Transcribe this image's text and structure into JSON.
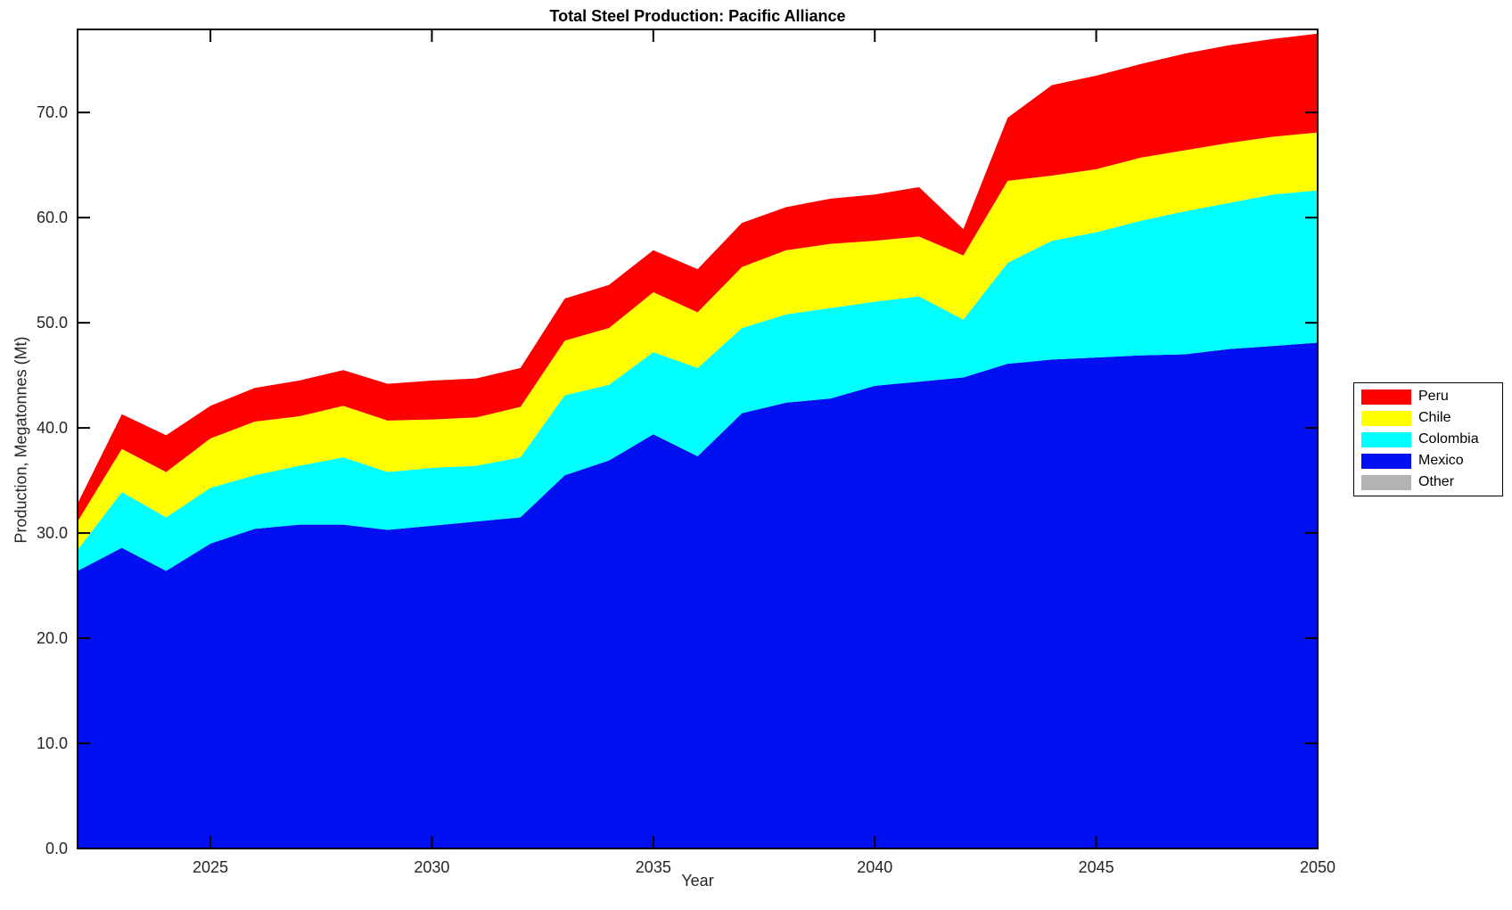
{
  "chart_data": {
    "type": "area",
    "stacked": true,
    "title": "Total Steel Production: Pacific Alliance",
    "xlabel": "Year",
    "ylabel": "Production, Megatonnes (Mt)",
    "xlim": [
      2022,
      2050
    ],
    "ylim": [
      0,
      77.9
    ],
    "grid": false,
    "x": [
      2022,
      2023,
      2024,
      2025,
      2026,
      2027,
      2028,
      2029,
      2030,
      2031,
      2032,
      2033,
      2034,
      2035,
      2036,
      2037,
      2038,
      2039,
      2040,
      2041,
      2042,
      2043,
      2044,
      2045,
      2046,
      2047,
      2048,
      2049,
      2050
    ],
    "x_ticks": [
      2025,
      2030,
      2035,
      2040,
      2045,
      2050
    ],
    "x_tick_labels": [
      "2025",
      "2030",
      "2035",
      "2040",
      "2045",
      "2050"
    ],
    "y_ticks": [
      0,
      10,
      20,
      30,
      40,
      50,
      60,
      70
    ],
    "y_tick_labels": [
      "0.0",
      "10.0",
      "20.0",
      "30.0",
      "40.0",
      "50.0",
      "60.0",
      "70.0"
    ],
    "series": [
      {
        "name": "Mexico",
        "color": "#0010f0",
        "values": [
          26.4,
          28.6,
          26.4,
          29.0,
          30.4,
          30.8,
          30.8,
          30.3,
          30.7,
          31.1,
          31.5,
          35.5,
          36.9,
          39.4,
          37.3,
          41.4,
          42.4,
          42.8,
          44.0,
          44.4,
          44.8,
          46.1,
          46.5,
          46.7,
          46.9,
          47.0,
          47.5,
          47.8,
          48.1
        ]
      },
      {
        "name": "Colombia",
        "color": "#00ffff",
        "values": [
          2.0,
          5.3,
          5.1,
          5.3,
          5.1,
          5.6,
          6.4,
          5.5,
          5.5,
          5.3,
          5.7,
          7.6,
          7.2,
          7.8,
          8.4,
          8.1,
          8.4,
          8.6,
          8.0,
          8.1,
          5.5,
          9.6,
          11.3,
          11.9,
          12.8,
          13.6,
          13.9,
          14.4,
          14.5
        ]
      },
      {
        "name": "Chile",
        "color": "#ffff00",
        "values": [
          2.7,
          4.1,
          4.3,
          4.7,
          5.1,
          4.7,
          4.9,
          4.9,
          4.6,
          4.6,
          4.8,
          5.2,
          5.4,
          5.7,
          5.3,
          5.8,
          6.1,
          6.1,
          5.8,
          5.7,
          6.1,
          7.8,
          6.2,
          6.0,
          6.0,
          5.8,
          5.7,
          5.5,
          5.5
        ]
      },
      {
        "name": "Peru",
        "color": "#ff0000",
        "values": [
          1.7,
          3.3,
          3.5,
          3.1,
          3.2,
          3.4,
          3.4,
          3.5,
          3.7,
          3.7,
          3.7,
          4.0,
          4.1,
          4.0,
          4.1,
          4.2,
          4.1,
          4.3,
          4.4,
          4.7,
          2.5,
          6.0,
          8.6,
          8.9,
          8.9,
          9.2,
          9.3,
          9.3,
          9.4
        ]
      },
      {
        "name": "Other",
        "color": "#b3b3b3",
        "values": [
          0,
          0,
          0,
          0,
          0,
          0,
          0,
          0,
          0,
          0,
          0,
          0,
          0,
          0,
          0,
          0,
          0,
          0,
          0,
          0,
          0,
          0,
          0,
          0,
          0,
          0,
          0,
          0,
          0
        ]
      }
    ],
    "legend": {
      "position": "right-center",
      "entries": [
        {
          "label": "Peru",
          "color": "#ff0000"
        },
        {
          "label": "Chile",
          "color": "#ffff00"
        },
        {
          "label": "Colombia",
          "color": "#00ffff"
        },
        {
          "label": "Mexico",
          "color": "#0010f0"
        },
        {
          "label": "Other",
          "color": "#b3b3b3"
        }
      ]
    }
  }
}
